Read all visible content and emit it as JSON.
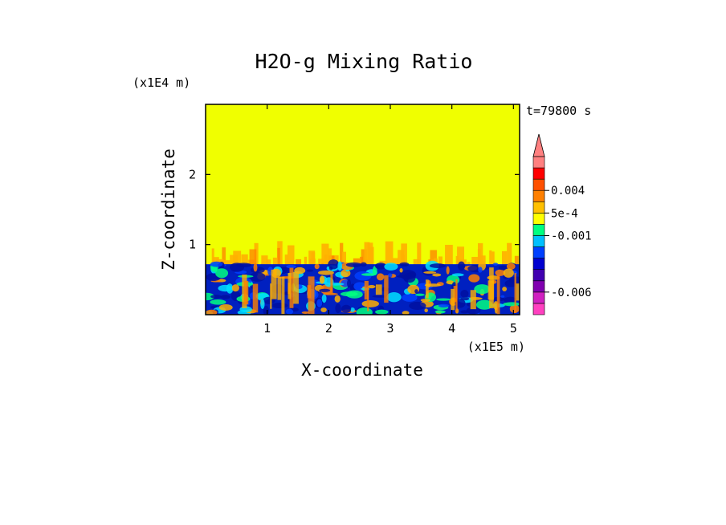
{
  "chart_data": {
    "type": "heatmap",
    "title": "H2O-g Mixing Ratio",
    "xlabel": "X-coordinate",
    "ylabel": "Z-coordinate",
    "x_scale_label": "(x1E5 m)",
    "y_scale_label": "(x1E4 m)",
    "time_label": "t=79800 s",
    "xlim": [
      0,
      5.1
    ],
    "ylim": [
      0,
      3.0
    ],
    "x_ticks": [
      1,
      2,
      3,
      4,
      5
    ],
    "x_tick_labels": [
      "1",
      "2",
      "3",
      "4",
      "5"
    ],
    "y_ticks": [
      1,
      2
    ],
    "y_tick_labels": [
      "1",
      "2"
    ],
    "colorbar": {
      "extend": "max",
      "levels": [
        {
          "color": "#ff40c0"
        },
        {
          "color": "#d020c0"
        },
        {
          "color": "#8000b0"
        },
        {
          "color": "#4000b0"
        },
        {
          "color": "#0000d0"
        },
        {
          "color": "#0040ff"
        },
        {
          "color": "#00c0ff"
        },
        {
          "color": "#00ff80"
        },
        {
          "color": "#ffff00"
        },
        {
          "color": "#ffc000"
        },
        {
          "color": "#ff8000"
        },
        {
          "color": "#ff5000"
        },
        {
          "color": "#ff0000"
        },
        {
          "color": "#ff8080"
        }
      ],
      "labels": [
        {
          "text": "0.004",
          "level_index": 11
        },
        {
          "text": "5e-4",
          "level_index": 9
        },
        {
          "text": "-0.001",
          "level_index": 7
        },
        {
          "text": "-0.006",
          "level_index": 2
        }
      ]
    },
    "field_regions": [
      {
        "name": "upper-uniform",
        "z_range": [
          0.72,
          3.0
        ],
        "color": "#f0ff00"
      },
      {
        "name": "plume-transition",
        "z_range": [
          0.62,
          1.05
        ],
        "color": "#ffb000"
      },
      {
        "name": "lower-turbulent",
        "z_range": [
          0,
          0.72
        ],
        "color": "#0020c0"
      }
    ],
    "colors": {
      "background_field": "#f0ff00",
      "plume": "#ffb000",
      "plume_dark": "#ff8000",
      "lower_dark": "#0010a0",
      "lower_mid": "#0040ff",
      "lower_cyan": "#00e0ff",
      "lower_green": "#00ff80"
    }
  }
}
